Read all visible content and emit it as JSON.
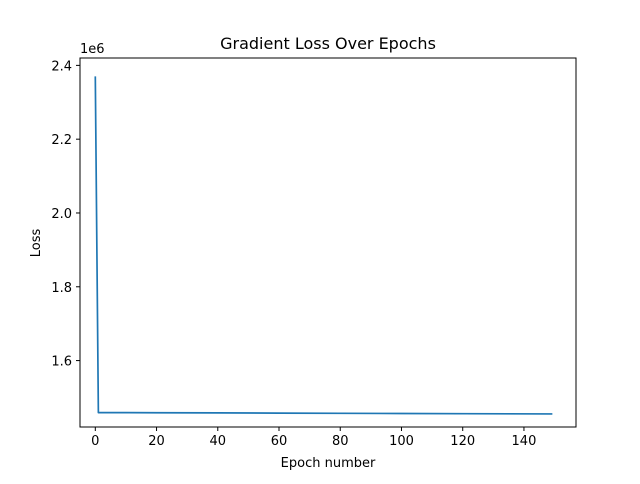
{
  "chart_data": {
    "type": "line",
    "title": "Gradient Loss Over Epochs",
    "xlabel": "Epoch number",
    "ylabel": "Loss",
    "y_offset_label": "1e6",
    "xlim": [
      -5,
      157
    ],
    "ylim": [
      1.42,
      2.42
    ],
    "y_scale_factor": 1000000,
    "x_ticks": [
      0,
      20,
      40,
      60,
      80,
      100,
      120,
      140
    ],
    "x_tick_labels": [
      "0",
      "20",
      "40",
      "60",
      "80",
      "100",
      "120",
      "140"
    ],
    "y_ticks": [
      1.6,
      1.8,
      2.0,
      2.2,
      2.4
    ],
    "y_tick_labels": [
      "1.6",
      "1.8",
      "2.0",
      "2.2",
      "2.4"
    ],
    "grid": false,
    "series": [
      {
        "color": "#1f77b4",
        "x": [
          0,
          1,
          10,
          20,
          40,
          60,
          80,
          100,
          120,
          149
        ],
        "y": [
          2.368,
          1.459,
          1.4589,
          1.4587,
          1.4582,
          1.4577,
          1.4571,
          1.4566,
          1.4561,
          1.4554
        ]
      }
    ]
  }
}
